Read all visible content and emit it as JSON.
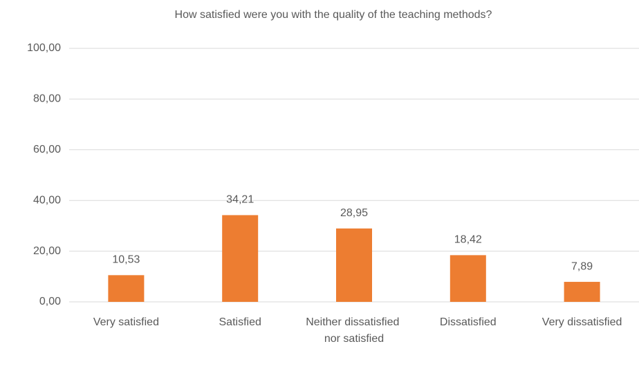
{
  "chart_data": {
    "type": "bar",
    "title": "How satisfied were you with the quality of the teaching methods?",
    "categories": [
      "Very satisfied",
      "Satisfied",
      "Neither dissatisfied nor satisfied",
      "Dissatisfied",
      "Very dissatisfied"
    ],
    "values": [
      10.53,
      34.21,
      28.95,
      18.42,
      7.89
    ],
    "value_labels": [
      "10,53",
      "34,21",
      "28,95",
      "18,42",
      "7,89"
    ],
    "color": "#ed7d31",
    "ylim": [
      0,
      100
    ],
    "yticks": [
      {
        "value": 0,
        "label": "0,00"
      },
      {
        "value": 20,
        "label": "20,00"
      },
      {
        "value": 40,
        "label": "40,00"
      },
      {
        "value": 60,
        "label": "60,00"
      },
      {
        "value": 80,
        "label": "80,00"
      },
      {
        "value": 100,
        "label": "100,00"
      }
    ],
    "grid": true
  }
}
